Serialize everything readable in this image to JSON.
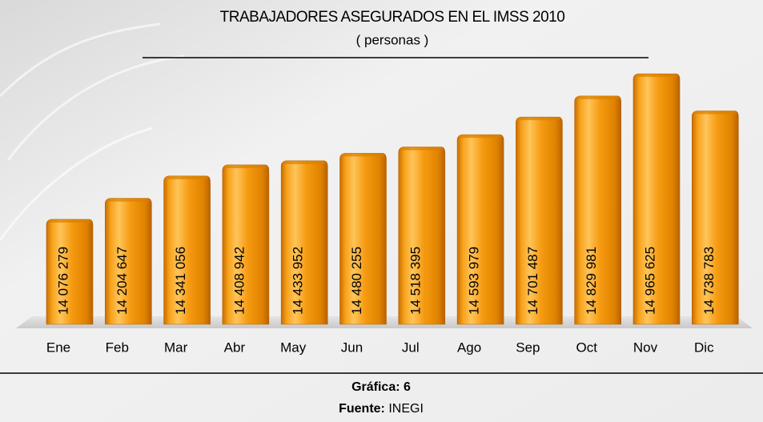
{
  "chart_data": {
    "type": "bar",
    "title": "TRABAJADORES ASEGURADOS EN EL IMSS 2010",
    "subtitle": "( personas )",
    "categories": [
      "Ene",
      "Feb",
      "Mar",
      "Abr",
      "May",
      "Jun",
      "Jul",
      "Ago",
      "Sep",
      "Oct",
      "Nov",
      "Dic"
    ],
    "values": [
      14076279,
      14204647,
      14341056,
      14408942,
      14433952,
      14480255,
      14518395,
      14593979,
      14701487,
      14829981,
      14965625,
      14738783
    ],
    "value_labels": [
      "14 076 279",
      "14 204 647",
      "14 341 056",
      "14 408 942",
      "14 433 952",
      "14 480 255",
      "14 518 395",
      "14 593 979",
      "14 701 487",
      "14 829 981",
      "14 965 625",
      "14 738 783"
    ],
    "color": "#f39a0c",
    "ylim": [
      13440000,
      15030000
    ],
    "grid": false
  },
  "footer": {
    "caption_label": "Gráfica:",
    "caption_number": "6",
    "source_label": "Fuente:",
    "source": "INEGI"
  }
}
